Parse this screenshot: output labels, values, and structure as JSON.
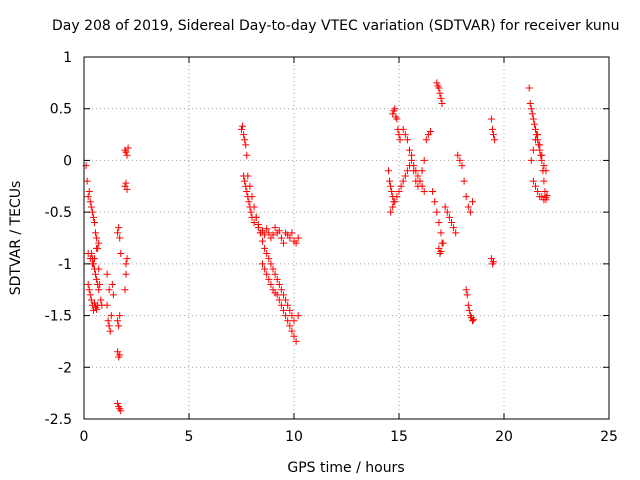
{
  "chart_data": {
    "type": "scatter",
    "title": "Day 208 of 2019, Sidereal Day-to-day VTEC variation (SDTVAR) for receiver kunu",
    "xlabel": "GPS time / hours",
    "ylabel": "SDTVAR / TECUs",
    "xlim": [
      0,
      25
    ],
    "ylim": [
      -2.5,
      1
    ],
    "xticks": [
      0,
      5,
      10,
      15,
      20,
      25
    ],
    "xtick_labels": [
      "0",
      "5",
      "10",
      "15",
      "20",
      "25"
    ],
    "yticks": [
      1,
      0.5,
      0,
      -0.5,
      -1,
      -1.5,
      -2,
      -2.5
    ],
    "ytick_labels": [
      "1",
      "0.5",
      "0",
      "-0.5",
      "-1",
      "-1.5",
      "-2",
      "-2.5"
    ],
    "grid": true,
    "marker": "+",
    "color": "#ff0000",
    "series": [
      {
        "name": "SDTVAR",
        "x": [
          0.1,
          0.15,
          0.2,
          0.25,
          0.3,
          0.35,
          0.4,
          0.45,
          0.5,
          0.55,
          0.6,
          0.65,
          0.7,
          0.75,
          0.8,
          0.85,
          0.35,
          0.4,
          0.45,
          0.5,
          0.55,
          0.6,
          0.65,
          0.7,
          0.2,
          0.25,
          0.3,
          0.35,
          0.4,
          0.45,
          0.5,
          0.55,
          0.6,
          0.65,
          0.2,
          0.3,
          0.4,
          0.5,
          0.6,
          0.7,
          1.1,
          1.15,
          1.2,
          1.25,
          1.3,
          1.35,
          1.1,
          1.2,
          1.4,
          1.6,
          1.65,
          1.7,
          1.75,
          1.6,
          1.65,
          1.7,
          1.6,
          1.65,
          1.7,
          1.6,
          1.65,
          1.7,
          1.75,
          1.95,
          2.0,
          2.05,
          2.1,
          1.95,
          2.0,
          2.05,
          2.0,
          2.05,
          1.95,
          2.0,
          7.5,
          7.55,
          7.6,
          7.65,
          7.7,
          7.75,
          7.6,
          7.65,
          7.7,
          7.75,
          7.8,
          7.85,
          7.9,
          7.95,
          8.0,
          8.1,
          8.2,
          8.3,
          8.4,
          8.5,
          8.6,
          8.7,
          8.8,
          8.9,
          9.0,
          9.1,
          9.2,
          9.3,
          9.4,
          9.5,
          9.6,
          9.7,
          9.8,
          9.9,
          10.0,
          10.1,
          10.2,
          7.8,
          7.9,
          8.0,
          8.1,
          8.2,
          8.3,
          8.4,
          8.5,
          8.6,
          8.7,
          8.8,
          8.9,
          9.0,
          9.1,
          9.2,
          9.3,
          9.4,
          9.5,
          9.6,
          9.7,
          9.8,
          9.9,
          10.0,
          8.5,
          8.6,
          8.7,
          8.8,
          8.9,
          9.0,
          9.1,
          9.2,
          9.3,
          9.4,
          9.5,
          9.6,
          9.7,
          9.8,
          9.9,
          10.0,
          10.1,
          10.2,
          14.5,
          14.55,
          14.6,
          14.65,
          14.7,
          14.75,
          14.7,
          14.75,
          14.8,
          14.85,
          14.9,
          14.95,
          15.0,
          15.05,
          14.6,
          14.7,
          14.8,
          14.9,
          15.0,
          15.1,
          15.2,
          15.3,
          15.4,
          15.5,
          15.6,
          15.7,
          15.8,
          15.9,
          16.0,
          16.1,
          16.2,
          15.2,
          15.3,
          15.4,
          15.5,
          15.6,
          15.7,
          15.8,
          15.9,
          16.0,
          16.1,
          16.2,
          16.3,
          16.4,
          16.5,
          16.6,
          16.7,
          16.8,
          16.9,
          17.0,
          17.1,
          16.8,
          16.85,
          16.9,
          16.95,
          17.0,
          17.05,
          16.9,
          16.95,
          17.0,
          17.05,
          17.2,
          17.3,
          17.4,
          17.5,
          17.6,
          17.7,
          17.8,
          17.9,
          18.0,
          18.1,
          18.2,
          18.3,
          18.4,
          18.5,
          18.2,
          18.25,
          18.3,
          18.35,
          18.4,
          18.45,
          18.5,
          18.55,
          19.4,
          19.45,
          19.5,
          19.55,
          19.4,
          19.45,
          19.5,
          21.2,
          21.25,
          21.3,
          21.35,
          21.4,
          21.45,
          21.5,
          21.55,
          21.6,
          21.65,
          21.7,
          21.75,
          21.8,
          21.85,
          21.9,
          21.95,
          22.0,
          21.3,
          21.4,
          21.5,
          21.6,
          21.7,
          21.8,
          21.9,
          22.0,
          21.4,
          21.5,
          21.6,
          21.7,
          21.8,
          21.9,
          22.0,
          22.05
        ],
        "y": [
          -0.05,
          -0.2,
          -0.35,
          -0.3,
          -0.4,
          -0.45,
          -0.5,
          -0.55,
          -0.6,
          -0.7,
          -0.75,
          -0.85,
          -1.05,
          -1.2,
          -1.35,
          -1.4,
          -0.9,
          -0.95,
          -1.0,
          -1.05,
          -1.1,
          -1.15,
          -1.2,
          -1.25,
          -1.2,
          -1.25,
          -1.3,
          -1.35,
          -1.4,
          -1.45,
          -1.38,
          -1.42,
          -1.44,
          -1.4,
          -0.9,
          -0.95,
          -1.0,
          -0.95,
          -0.85,
          -0.8,
          -1.4,
          -1.55,
          -1.6,
          -1.65,
          -1.5,
          -1.2,
          -1.1,
          -1.25,
          -1.3,
          -0.7,
          -0.65,
          -0.75,
          -0.9,
          -1.85,
          -1.9,
          -1.88,
          -1.55,
          -1.6,
          -1.5,
          -2.35,
          -2.38,
          -2.4,
          -2.42,
          0.1,
          0.08,
          0.05,
          0.12,
          -0.25,
          -0.22,
          -0.28,
          -1.0,
          -0.95,
          -1.25,
          -1.1,
          0.3,
          0.33,
          0.25,
          0.2,
          0.15,
          0.05,
          -0.15,
          -0.2,
          -0.25,
          -0.3,
          -0.35,
          -0.4,
          -0.45,
          -0.5,
          -0.55,
          -0.6,
          -0.55,
          -0.65,
          -0.7,
          -0.68,
          -0.72,
          -0.66,
          -0.7,
          -0.75,
          -0.72,
          -0.65,
          -0.7,
          -0.68,
          -0.75,
          -0.8,
          -0.7,
          -0.72,
          -0.75,
          -0.7,
          -0.78,
          -0.8,
          -0.75,
          -0.15,
          -0.25,
          -0.35,
          -0.45,
          -0.55,
          -0.62,
          -0.7,
          -0.78,
          -0.85,
          -0.9,
          -0.95,
          -1.0,
          -1.05,
          -1.1,
          -1.15,
          -1.2,
          -1.25,
          -1.3,
          -1.35,
          -1.4,
          -1.45,
          -1.5,
          -1.55,
          -1.0,
          -1.05,
          -1.1,
          -1.15,
          -1.2,
          -1.25,
          -1.28,
          -1.3,
          -1.35,
          -1.4,
          -1.45,
          -1.5,
          -1.55,
          -1.6,
          -1.65,
          -1.7,
          -1.75,
          -1.5,
          -0.1,
          -0.2,
          -0.25,
          -0.3,
          -0.35,
          -0.4,
          0.45,
          0.48,
          0.5,
          0.42,
          0.4,
          0.3,
          0.25,
          0.2,
          -0.5,
          -0.45,
          -0.4,
          -0.35,
          -0.3,
          -0.25,
          -0.2,
          -0.15,
          -0.1,
          -0.05,
          0.0,
          -0.05,
          -0.1,
          -0.15,
          -0.2,
          -0.25,
          -0.3,
          0.3,
          0.25,
          0.2,
          0.1,
          0.05,
          -0.1,
          -0.2,
          -0.25,
          -0.2,
          -0.1,
          0.0,
          0.2,
          0.25,
          0.28,
          -0.3,
          -0.4,
          -0.5,
          -0.6,
          -0.7,
          -0.8,
          0.75,
          0.72,
          0.7,
          0.65,
          0.6,
          0.55,
          -0.85,
          -0.9,
          -0.88,
          -0.8,
          -0.45,
          -0.5,
          -0.55,
          -0.6,
          -0.65,
          -0.7,
          0.05,
          0.0,
          -0.05,
          -0.2,
          -0.35,
          -0.45,
          -0.5,
          -0.4,
          -1.25,
          -1.3,
          -1.4,
          -1.45,
          -1.5,
          -1.52,
          -1.55,
          -1.54,
          0.4,
          0.3,
          0.25,
          0.2,
          -0.95,
          -1.0,
          -0.98,
          0.7,
          0.55,
          0.5,
          0.45,
          0.4,
          0.35,
          0.3,
          0.25,
          0.2,
          0.15,
          0.1,
          0.05,
          0.0,
          -0.1,
          -0.2,
          -0.3,
          -0.38,
          0.0,
          0.1,
          0.2,
          0.25,
          0.15,
          0.05,
          -0.05,
          -0.1,
          -0.2,
          -0.25,
          -0.3,
          -0.35,
          -0.35,
          -0.38,
          -0.36,
          -0.34
        ]
      }
    ]
  }
}
